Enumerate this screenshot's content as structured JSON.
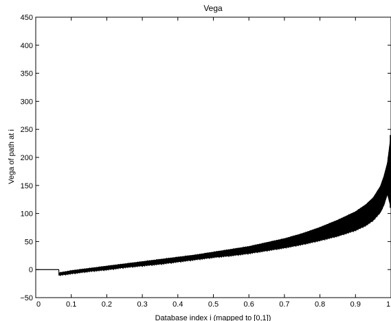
{
  "chart_data": {
    "type": "line",
    "title": "Vega",
    "xlabel": "Database index i (mapped to [0,1])",
    "ylabel": "Vega of path at i",
    "xlim": [
      0,
      1
    ],
    "ylim": [
      -50,
      450
    ],
    "grid": false,
    "legend": "none",
    "line_color": "#000000",
    "x_ticks": [
      0,
      0.1,
      0.2,
      0.3,
      0.4,
      0.5,
      0.6,
      0.7,
      0.8,
      0.9,
      1
    ],
    "x_tick_labels": [
      "0",
      "0.1",
      "0.2",
      "0.3",
      "0.4",
      "0.5",
      "0.6",
      "0.7",
      "0.8",
      "0.9",
      "1"
    ],
    "y_ticks": [
      -50,
      0,
      50,
      100,
      150,
      200,
      250,
      300,
      350,
      400,
      450
    ],
    "y_tick_labels": [
      "−50",
      "0",
      "50",
      "100",
      "150",
      "200",
      "250",
      "300",
      "350",
      "400",
      "450"
    ],
    "series": [
      {
        "x": [
          0,
          0.065,
          0.065,
          0.1,
          0.15,
          0.2,
          0.25,
          0.3,
          0.35,
          0.4,
          0.45,
          0.5,
          0.55,
          0.6,
          0.65,
          0.7,
          0.75,
          0.8,
          0.85,
          0.9,
          0.93,
          0.95,
          0.97,
          0.98,
          0.99,
          1.0
        ],
        "upper": [
          0,
          0,
          -6,
          -2,
          2,
          6,
          10,
          14,
          18,
          22,
          26,
          31,
          36,
          41,
          48,
          55,
          64,
          75,
          88,
          103,
          116,
          128,
          148,
          166,
          190,
          240
        ],
        "lower": [
          0,
          0,
          -10,
          -7,
          -3,
          0,
          4,
          7,
          10,
          14,
          18,
          22,
          25,
          29,
          34,
          39,
          45,
          52,
          60,
          70,
          79,
          88,
          102,
          115,
          135,
          110
        ]
      }
    ]
  }
}
